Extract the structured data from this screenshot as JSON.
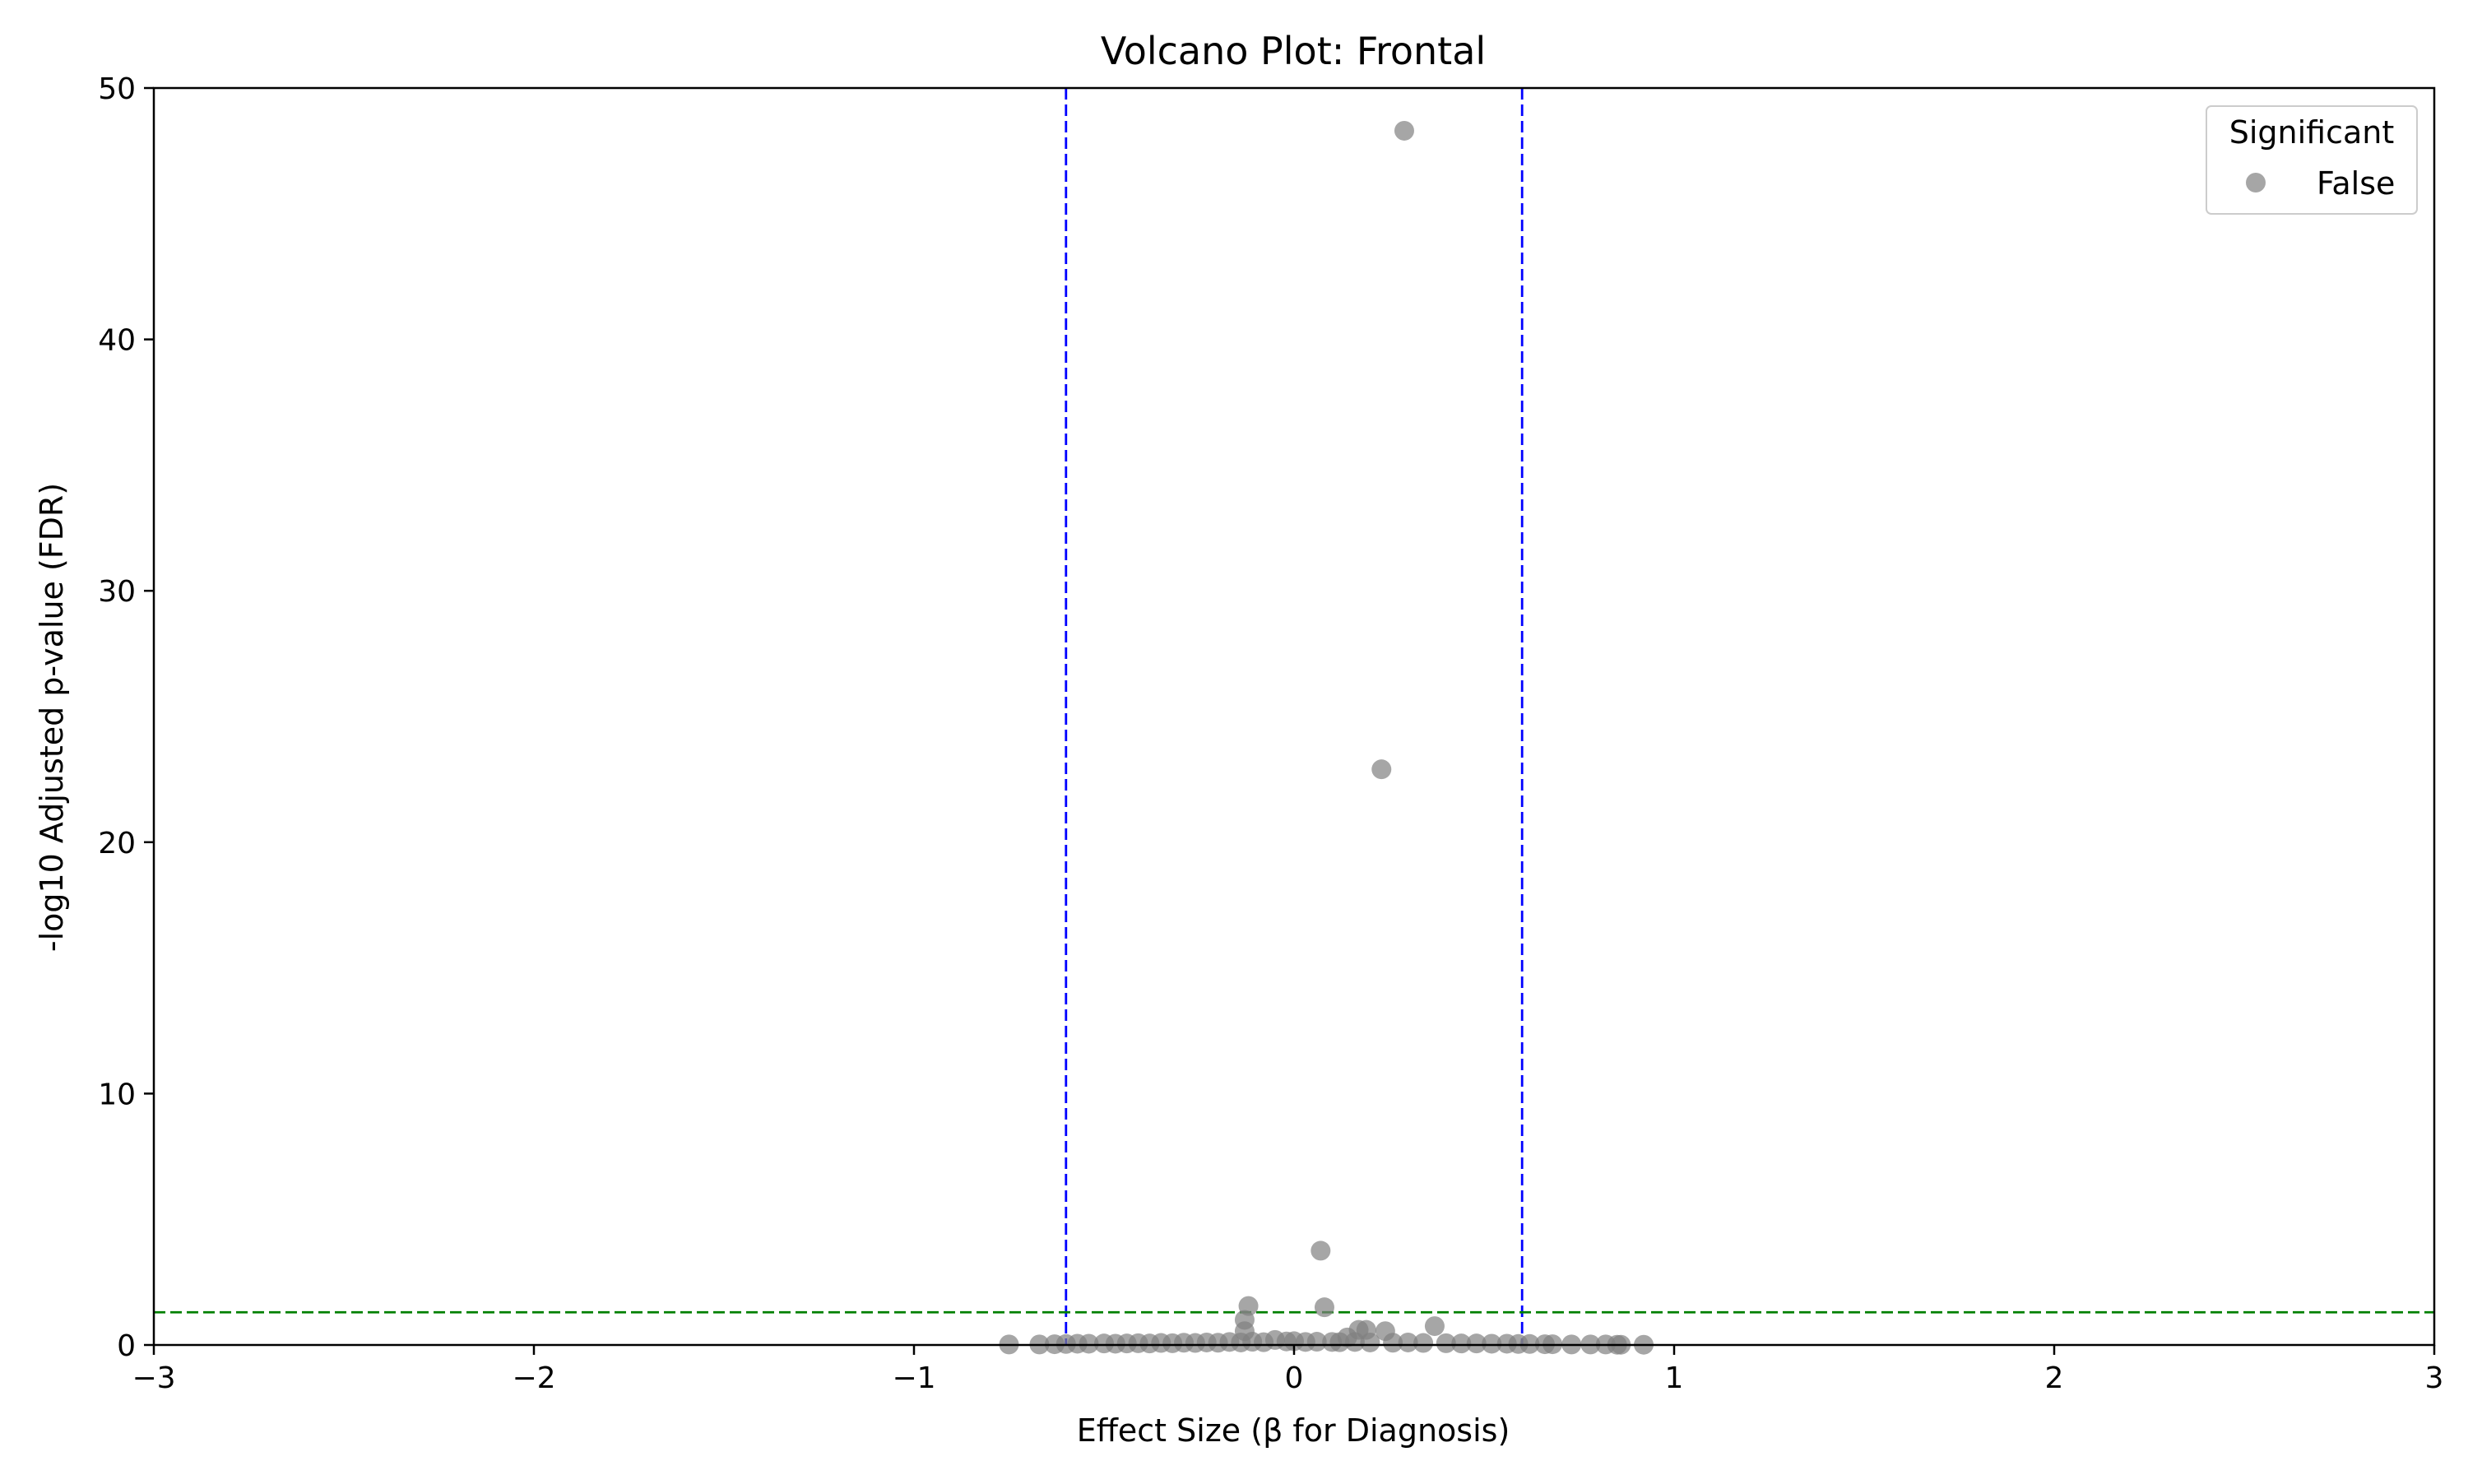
{
  "chart_data": {
    "type": "scatter",
    "title": "Volcano Plot: Frontal",
    "xlabel": "Effect Size (β for Diagnosis)",
    "ylabel": "-log10 Adjusted p-value (FDR)",
    "xlim": [
      -3,
      3
    ],
    "ylim": [
      0,
      50
    ],
    "x_ticks": [
      -3,
      -2,
      -1,
      0,
      1,
      2,
      3
    ],
    "x_tick_labels": [
      "−3",
      "−2",
      "−1",
      "0",
      "1",
      "2",
      "3"
    ],
    "y_ticks": [
      0,
      10,
      20,
      30,
      40,
      50
    ],
    "y_tick_labels": [
      "0",
      "10",
      "20",
      "30",
      "40",
      "50"
    ],
    "grid": false,
    "legend": {
      "title": "Significant",
      "placement": "top-right",
      "entries": [
        {
          "label": "False",
          "color": "#808080"
        }
      ]
    },
    "reference_lines": [
      {
        "orientation": "vertical",
        "value": -0.6,
        "color": "#0000ff",
        "style": "dashed"
      },
      {
        "orientation": "vertical",
        "value": 0.6,
        "color": "#0000ff",
        "style": "dashed"
      },
      {
        "orientation": "horizontal",
        "value": 1.3,
        "color": "#008000",
        "style": "dashed"
      }
    ],
    "series": [
      {
        "name": "False",
        "color": "#808080",
        "points": [
          [
            0.29,
            48.3
          ],
          [
            0.23,
            22.9
          ],
          [
            0.07,
            3.75
          ],
          [
            -0.12,
            1.55
          ],
          [
            0.08,
            1.5
          ],
          [
            -0.13,
            1.0
          ],
          [
            0.37,
            0.75
          ],
          [
            0.17,
            0.6
          ],
          [
            0.19,
            0.6
          ],
          [
            0.24,
            0.55
          ],
          [
            -0.13,
            0.55
          ],
          [
            0.14,
            0.3
          ],
          [
            -0.05,
            0.2
          ],
          [
            0.0,
            0.15
          ],
          [
            0.1,
            0.12
          ],
          [
            -0.75,
            0.02
          ],
          [
            -0.67,
            0.02
          ],
          [
            -0.63,
            0.03
          ],
          [
            -0.6,
            0.04
          ],
          [
            -0.57,
            0.05
          ],
          [
            -0.54,
            0.05
          ],
          [
            -0.5,
            0.06
          ],
          [
            -0.47,
            0.05
          ],
          [
            -0.44,
            0.06
          ],
          [
            -0.41,
            0.07
          ],
          [
            -0.38,
            0.06
          ],
          [
            -0.35,
            0.08
          ],
          [
            -0.32,
            0.07
          ],
          [
            -0.29,
            0.09
          ],
          [
            -0.26,
            0.08
          ],
          [
            -0.23,
            0.1
          ],
          [
            -0.2,
            0.09
          ],
          [
            -0.17,
            0.12
          ],
          [
            -0.14,
            0.1
          ],
          [
            -0.11,
            0.13
          ],
          [
            -0.08,
            0.11
          ],
          [
            -0.02,
            0.14
          ],
          [
            0.03,
            0.12
          ],
          [
            0.06,
            0.13
          ],
          [
            0.12,
            0.11
          ],
          [
            0.16,
            0.12
          ],
          [
            0.2,
            0.1
          ],
          [
            0.26,
            0.09
          ],
          [
            0.3,
            0.1
          ],
          [
            0.34,
            0.08
          ],
          [
            0.4,
            0.07
          ],
          [
            0.44,
            0.06
          ],
          [
            0.48,
            0.06
          ],
          [
            0.52,
            0.05
          ],
          [
            0.56,
            0.05
          ],
          [
            0.59,
            0.04
          ],
          [
            0.62,
            0.04
          ],
          [
            0.66,
            0.03
          ],
          [
            0.68,
            0.03
          ],
          [
            0.73,
            0.02
          ],
          [
            0.78,
            0.02
          ],
          [
            0.82,
            0.02
          ],
          [
            0.85,
            0.01
          ],
          [
            0.86,
            0.01
          ],
          [
            0.92,
            0.01
          ]
        ]
      }
    ]
  }
}
